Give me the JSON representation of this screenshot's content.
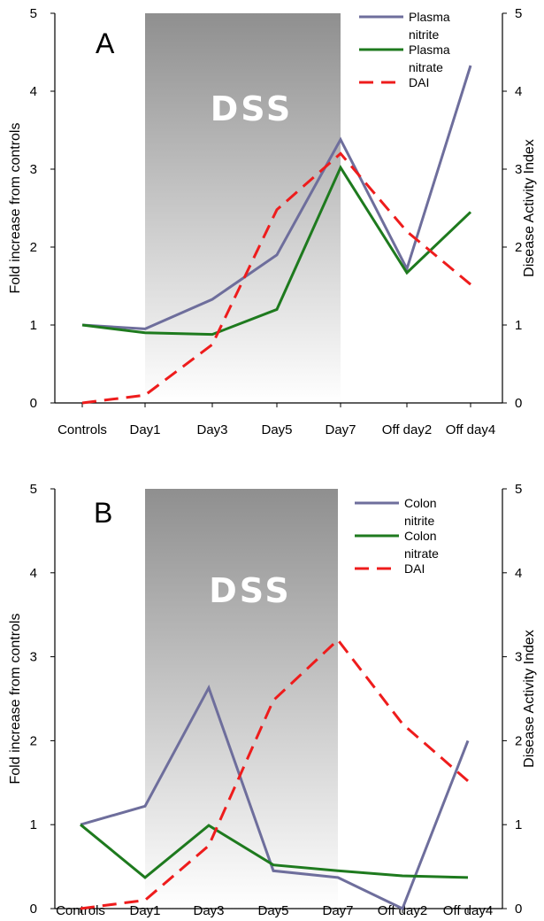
{
  "chart_data": [
    {
      "type": "line",
      "panel_label": "A",
      "shaded_label": "DSS",
      "shaded_range": [
        "Day1",
        "Day7"
      ],
      "categories": [
        "Controls",
        "Day1",
        "Day3",
        "Day5",
        "Day7",
        "Off day2",
        "Off day4"
      ],
      "ylabel": "Fold increase from controls",
      "y2label": "Disease Activity Index",
      "ylim": [
        0,
        5
      ],
      "y2lim": [
        0,
        5
      ],
      "yticks": [
        "0",
        "1",
        "2",
        "3",
        "4",
        "5"
      ],
      "legend_position": "top-right",
      "series": [
        {
          "name": "Plasma nitrite",
          "legend_lines": [
            "Plasma",
            "nitrite"
          ],
          "color": "#6e6e9c",
          "dashed": false,
          "axis": "left",
          "values": [
            1.0,
            0.95,
            1.33,
            1.9,
            3.38,
            1.72,
            4.33
          ]
        },
        {
          "name": "Plasma nitrate",
          "legend_lines": [
            "Plasma",
            "nitrate"
          ],
          "color": "#1e7a1e",
          "dashed": false,
          "axis": "left",
          "values": [
            1.0,
            0.9,
            0.88,
            1.2,
            3.02,
            1.67,
            2.45
          ]
        },
        {
          "name": "DAI",
          "legend_lines": [
            "DAI"
          ],
          "color": "#ee1c1c",
          "dashed": true,
          "axis": "right",
          "values": [
            0.0,
            0.1,
            0.75,
            2.48,
            3.2,
            2.2,
            1.52
          ]
        }
      ]
    },
    {
      "type": "line",
      "panel_label": "B",
      "shaded_label": "DSS",
      "shaded_range": [
        "Day1",
        "Day7"
      ],
      "categories": [
        "Controls",
        "Day1",
        "Day3",
        "Day5",
        "Day7",
        "Off day2",
        "Off day4"
      ],
      "ylabel": "Fold increase from controls",
      "y2label": "Disease Activity Index",
      "ylim": [
        0,
        5
      ],
      "y2lim": [
        0,
        5
      ],
      "yticks": [
        "0",
        "1",
        "2",
        "3",
        "4",
        "5"
      ],
      "legend_position": "top-right",
      "series": [
        {
          "name": "Colon nitrite",
          "legend_lines": [
            "Colon",
            "nitrite"
          ],
          "color": "#6e6e9c",
          "dashed": false,
          "axis": "left",
          "values": [
            1.0,
            1.22,
            2.63,
            0.45,
            0.37,
            0.0,
            2.0
          ]
        },
        {
          "name": "Colon nitrate",
          "legend_lines": [
            "Colon",
            "nitrate"
          ],
          "color": "#1e7a1e",
          "dashed": false,
          "axis": "left",
          "values": [
            1.0,
            0.37,
            0.99,
            0.52,
            0.45,
            0.39,
            0.37
          ]
        },
        {
          "name": "DAI",
          "legend_lines": [
            "DAI"
          ],
          "color": "#ee1c1c",
          "dashed": true,
          "axis": "right",
          "values": [
            0.0,
            0.1,
            0.75,
            2.48,
            3.2,
            2.2,
            1.52
          ]
        }
      ]
    }
  ]
}
